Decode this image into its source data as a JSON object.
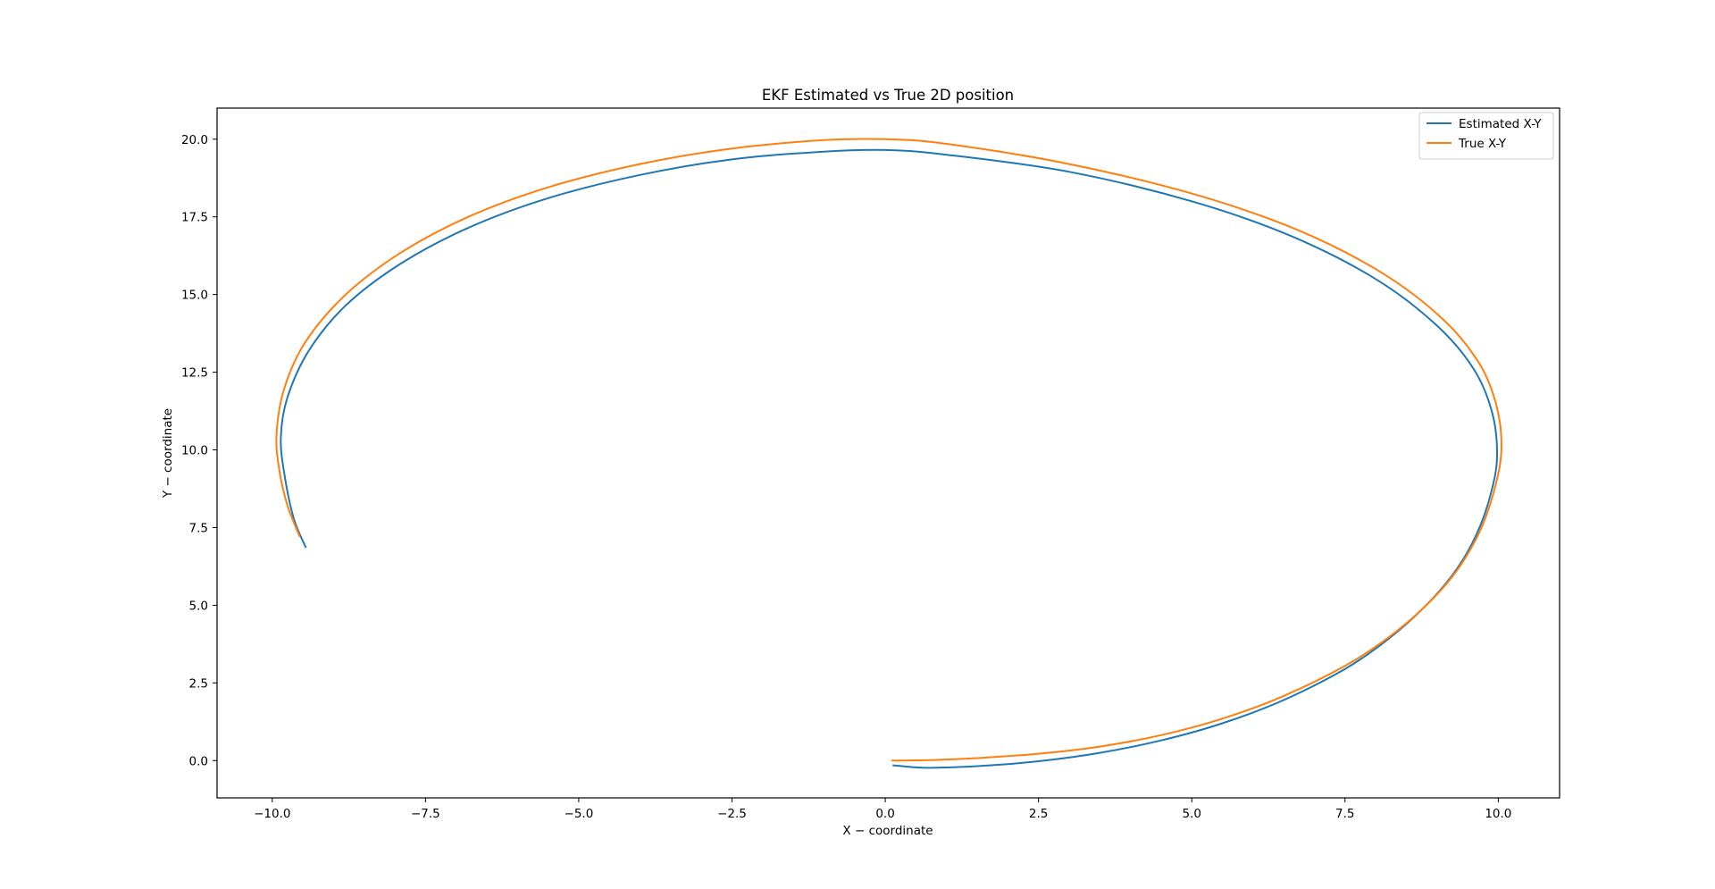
{
  "chart_data": {
    "type": "line",
    "title": "EKF Estimated vs True 2D position",
    "xlabel": "X − coordinate",
    "ylabel": "Y − coordinate",
    "xlim": [
      -10.9,
      11.0
    ],
    "ylim": [
      -1.2,
      21.0
    ],
    "xticks": [
      -10.0,
      -7.5,
      -5.0,
      -2.5,
      0.0,
      2.5,
      5.0,
      7.5,
      10.0
    ],
    "xtick_labels": [
      "−10.0",
      "−7.5",
      "−5.0",
      "−2.5",
      "0.0",
      "2.5",
      "5.0",
      "7.5",
      "10.0"
    ],
    "yticks": [
      0.0,
      2.5,
      5.0,
      7.5,
      10.0,
      12.5,
      15.0,
      17.5,
      20.0
    ],
    "ytick_labels": [
      "0.0",
      "2.5",
      "5.0",
      "7.5",
      "10.0",
      "12.5",
      "15.0",
      "17.5",
      "20.0"
    ],
    "grid": false,
    "legend_position": "top-right",
    "series": [
      {
        "name": "Estimated X-Y",
        "color": "#1f77b4",
        "points": [
          [
            0.12,
            -0.15
          ],
          [
            0.5,
            -0.22
          ],
          [
            0.8,
            -0.23
          ],
          [
            1.5,
            -0.18
          ],
          [
            2.5,
            -0.02
          ],
          [
            3.5,
            0.25
          ],
          [
            4.5,
            0.65
          ],
          [
            5.5,
            1.2
          ],
          [
            6.5,
            1.95
          ],
          [
            7.5,
            2.95
          ],
          [
            8.2,
            3.9
          ],
          [
            8.8,
            4.95
          ],
          [
            9.3,
            6.1
          ],
          [
            9.65,
            7.3
          ],
          [
            9.88,
            8.6
          ],
          [
            9.98,
            9.8
          ],
          [
            9.9,
            11.2
          ],
          [
            9.6,
            12.6
          ],
          [
            9.0,
            14.0
          ],
          [
            8.0,
            15.5
          ],
          [
            6.6,
            16.9
          ],
          [
            5.0,
            18.0
          ],
          [
            3.0,
            18.95
          ],
          [
            1.0,
            19.5
          ],
          [
            0.0,
            19.65
          ],
          [
            -1.0,
            19.6
          ],
          [
            -2.5,
            19.35
          ],
          [
            -4.0,
            18.85
          ],
          [
            -5.5,
            18.1
          ],
          [
            -6.8,
            17.15
          ],
          [
            -7.9,
            16.0
          ],
          [
            -8.8,
            14.65
          ],
          [
            -9.4,
            13.2
          ],
          [
            -9.75,
            11.7
          ],
          [
            -9.86,
            10.4
          ],
          [
            -9.8,
            9.2
          ],
          [
            -9.65,
            7.8
          ],
          [
            -9.45,
            6.85
          ]
        ]
      },
      {
        "name": "True X-Y",
        "color": "#ff7f0e",
        "points": [
          [
            0.1,
            0.0
          ],
          [
            0.8,
            0.02
          ],
          [
            1.5,
            0.08
          ],
          [
            2.5,
            0.22
          ],
          [
            3.5,
            0.45
          ],
          [
            4.5,
            0.82
          ],
          [
            5.5,
            1.35
          ],
          [
            6.5,
            2.08
          ],
          [
            7.5,
            3.05
          ],
          [
            8.2,
            3.95
          ],
          [
            8.8,
            4.95
          ],
          [
            9.3,
            6.05
          ],
          [
            9.68,
            7.3
          ],
          [
            9.92,
            8.6
          ],
          [
            10.05,
            9.95
          ],
          [
            9.98,
            11.35
          ],
          [
            9.7,
            12.75
          ],
          [
            9.1,
            14.2
          ],
          [
            8.1,
            15.7
          ],
          [
            6.7,
            17.1
          ],
          [
            5.0,
            18.25
          ],
          [
            3.0,
            19.2
          ],
          [
            1.0,
            19.85
          ],
          [
            0.0,
            20.0
          ],
          [
            -1.0,
            19.97
          ],
          [
            -2.5,
            19.7
          ],
          [
            -4.0,
            19.2
          ],
          [
            -5.5,
            18.45
          ],
          [
            -6.8,
            17.5
          ],
          [
            -7.9,
            16.35
          ],
          [
            -8.8,
            15.0
          ],
          [
            -9.45,
            13.5
          ],
          [
            -9.8,
            12.0
          ],
          [
            -9.93,
            10.5
          ],
          [
            -9.88,
            9.3
          ],
          [
            -9.75,
            8.2
          ],
          [
            -9.55,
            7.2
          ]
        ]
      }
    ]
  }
}
